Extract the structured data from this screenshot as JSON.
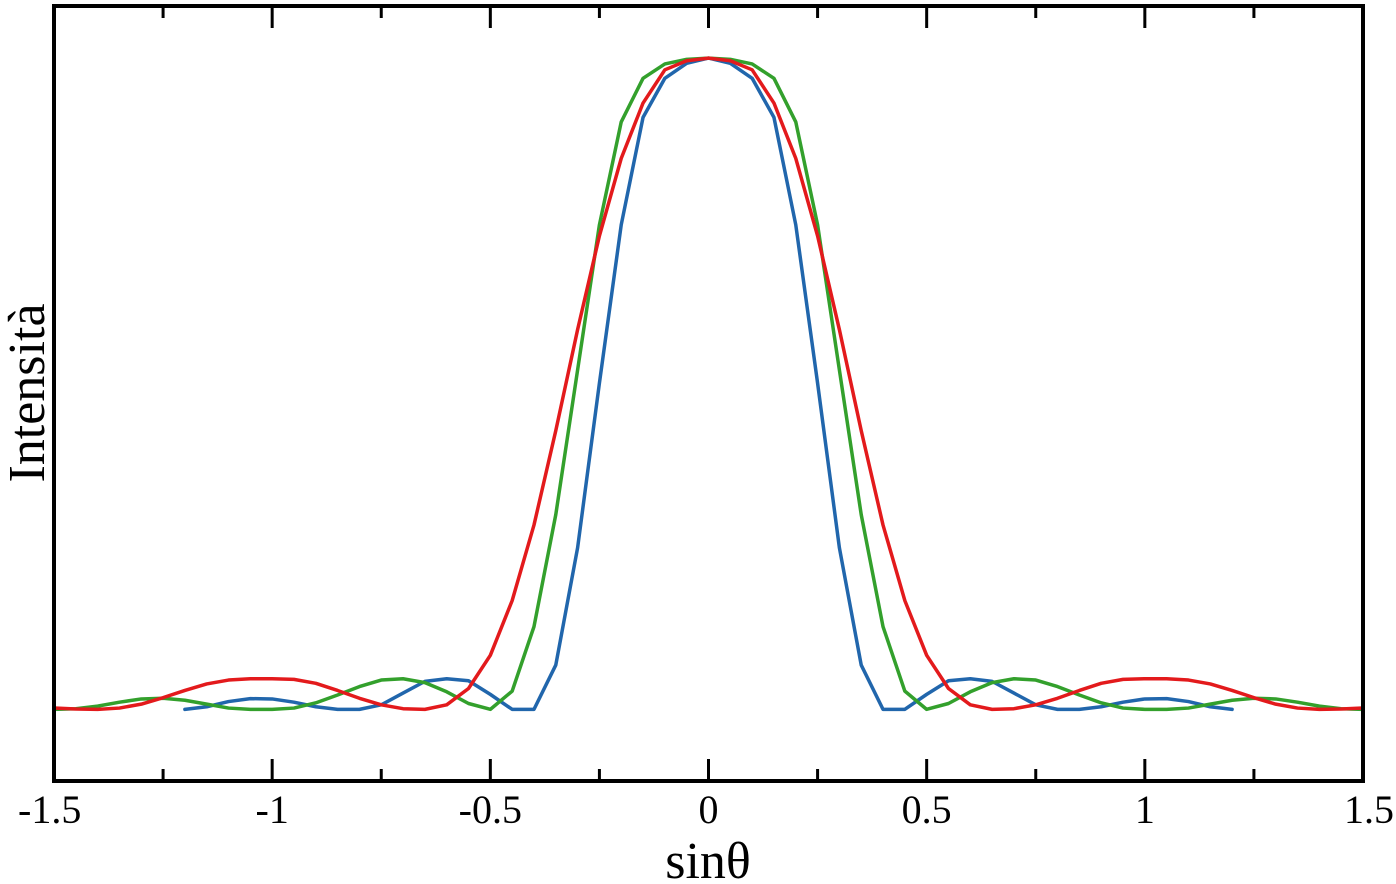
{
  "chart_data": {
    "type": "line",
    "title": "",
    "xlabel": "sinθ",
    "ylabel": "Intensità",
    "xlim": [
      -1.5,
      1.5
    ],
    "ylim": [
      -0.11,
      1.08
    ],
    "x_ticks": [
      -1.5,
      -1,
      -0.5,
      0,
      0.5,
      1,
      1.5
    ],
    "x_tick_labels": [
      "-1.5",
      "-1",
      "-0.5",
      "0",
      "0.5",
      "1",
      "1.5"
    ],
    "x_minor_tick_step": 0.25,
    "y_tick_labels": [],
    "grid": false,
    "legend": "none",
    "series": [
      {
        "color": "#2166ac",
        "x": [
          -1.2,
          -1.15,
          -1.1,
          -1.05,
          -1.0,
          -0.95,
          -0.9,
          -0.85,
          -0.8,
          -0.75,
          -0.7,
          -0.65,
          -0.6,
          -0.55,
          -0.5,
          -0.45,
          -0.4,
          -0.35,
          -0.3,
          -0.25,
          -0.2,
          -0.15,
          -0.1,
          -0.05,
          0.0,
          0.05,
          0.1,
          0.15,
          0.2,
          0.25,
          0.3,
          0.35,
          0.4,
          0.45,
          0.5,
          0.55,
          0.6,
          0.65,
          0.7,
          0.75,
          0.8,
          0.85,
          0.9,
          0.95,
          1.0,
          1.05,
          1.1,
          1.15,
          1.2
        ],
        "y": [
          0.0,
          0.004,
          0.012,
          0.0165,
          0.016,
          0.011,
          0.004,
          0.0,
          0.0,
          0.007,
          0.025,
          0.043,
          0.047,
          0.044,
          0.023,
          0.0,
          0.0,
          0.068,
          0.248,
          0.501,
          0.744,
          0.909,
          0.969,
          0.992,
          1.0,
          0.992,
          0.969,
          0.909,
          0.744,
          0.501,
          0.248,
          0.068,
          0.0,
          0.0,
          0.023,
          0.044,
          0.047,
          0.043,
          0.025,
          0.007,
          0.0,
          0.0,
          0.004,
          0.011,
          0.016,
          0.0165,
          0.012,
          0.004,
          0.0
        ]
      },
      {
        "color": "#33a02c",
        "x": [
          -1.5,
          -1.45,
          -1.4,
          -1.35,
          -1.3,
          -1.25,
          -1.2,
          -1.15,
          -1.1,
          -1.05,
          -1.0,
          -0.95,
          -0.9,
          -0.85,
          -0.8,
          -0.75,
          -0.7,
          -0.65,
          -0.6,
          -0.55,
          -0.5,
          -0.45,
          -0.4,
          -0.35,
          -0.3,
          -0.25,
          -0.2,
          -0.15,
          -0.1,
          -0.05,
          0.0,
          0.05,
          0.1,
          0.15,
          0.2,
          0.25,
          0.3,
          0.35,
          0.4,
          0.45,
          0.5,
          0.55,
          0.6,
          0.65,
          0.7,
          0.75,
          0.8,
          0.85,
          0.9,
          0.95,
          1.0,
          1.05,
          1.1,
          1.15,
          1.2,
          1.25,
          1.3,
          1.35,
          1.4,
          1.45,
          1.5
        ],
        "y": [
          0.0,
          0.001,
          0.005,
          0.011,
          0.016,
          0.017,
          0.014,
          0.008,
          0.002,
          0.0,
          0.0,
          0.002,
          0.01,
          0.022,
          0.035,
          0.045,
          0.047,
          0.041,
          0.027,
          0.009,
          0.0,
          0.028,
          0.127,
          0.299,
          0.521,
          0.744,
          0.902,
          0.969,
          0.991,
          0.998,
          1.0,
          0.998,
          0.991,
          0.969,
          0.902,
          0.744,
          0.521,
          0.299,
          0.127,
          0.028,
          0.0,
          0.009,
          0.027,
          0.041,
          0.047,
          0.045,
          0.035,
          0.022,
          0.01,
          0.002,
          0.0,
          0.0,
          0.002,
          0.008,
          0.014,
          0.017,
          0.016,
          0.011,
          0.005,
          0.001,
          0.0
        ]
      },
      {
        "color": "#e31a1c",
        "x": [
          -1.5,
          -1.45,
          -1.4,
          -1.35,
          -1.3,
          -1.25,
          -1.2,
          -1.15,
          -1.1,
          -1.05,
          -1.0,
          -0.95,
          -0.9,
          -0.85,
          -0.8,
          -0.75,
          -0.7,
          -0.65,
          -0.6,
          -0.55,
          -0.5,
          -0.45,
          -0.4,
          -0.35,
          -0.3,
          -0.25,
          -0.2,
          -0.15,
          -0.1,
          -0.05,
          0.0,
          0.05,
          0.1,
          0.15,
          0.2,
          0.25,
          0.3,
          0.35,
          0.4,
          0.45,
          0.5,
          0.55,
          0.6,
          0.65,
          0.7,
          0.75,
          0.8,
          0.85,
          0.9,
          0.95,
          1.0,
          1.05,
          1.1,
          1.15,
          1.2,
          1.25,
          1.3,
          1.35,
          1.4,
          1.45,
          1.5
        ],
        "y": [
          0.002,
          0.0005,
          0.0,
          0.002,
          0.008,
          0.018,
          0.029,
          0.039,
          0.045,
          0.047,
          0.047,
          0.046,
          0.04,
          0.029,
          0.017,
          0.007,
          0.001,
          0.0,
          0.007,
          0.032,
          0.083,
          0.167,
          0.283,
          0.428,
          0.583,
          0.727,
          0.846,
          0.931,
          0.982,
          0.996,
          1.0,
          0.996,
          0.982,
          0.931,
          0.846,
          0.727,
          0.583,
          0.428,
          0.283,
          0.167,
          0.083,
          0.032,
          0.007,
          0.0,
          0.001,
          0.007,
          0.017,
          0.029,
          0.04,
          0.046,
          0.047,
          0.047,
          0.045,
          0.039,
          0.029,
          0.018,
          0.008,
          0.002,
          0.0,
          0.0005,
          0.002
        ]
      }
    ]
  }
}
